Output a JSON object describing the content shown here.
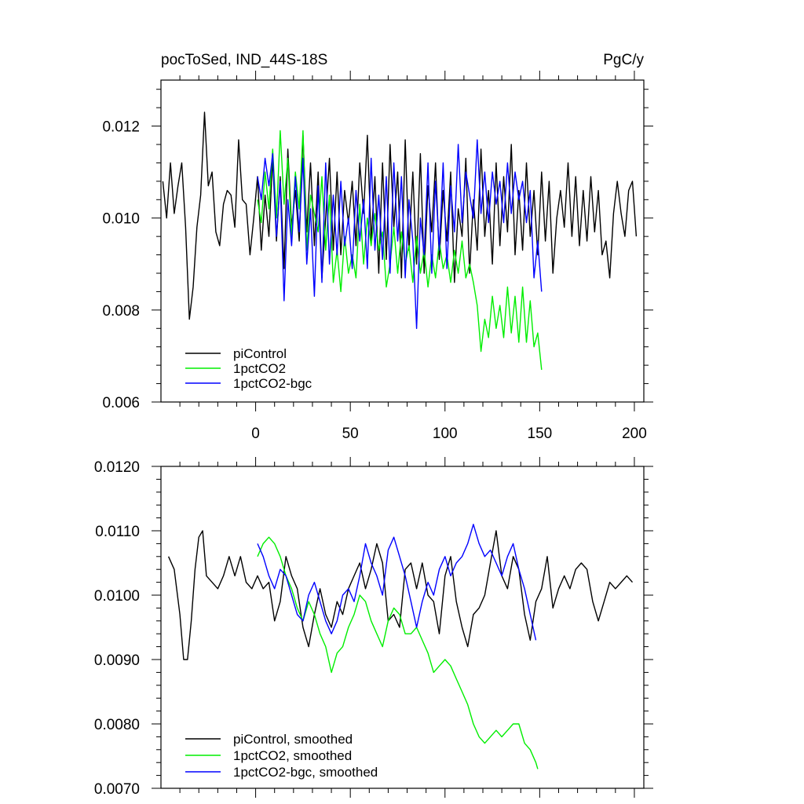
{
  "chart_data": [
    {
      "type": "line",
      "title_left": "pocToSed, IND_44S-18S",
      "title_right": "PgC/y",
      "xlim": [
        -50,
        205
      ],
      "ylim": [
        0.006,
        0.013
      ],
      "x_ticks": [
        0,
        50,
        100,
        150,
        200
      ],
      "x_tick_labels": [
        "0",
        "50",
        "100",
        "150",
        "200"
      ],
      "y_ticks": [
        0.006,
        0.008,
        0.01,
        0.012
      ],
      "y_tick_labels": [
        "0.006",
        "0.008",
        "0.010",
        "0.012"
      ],
      "legend": "bottom-left",
      "grid": false,
      "series": [
        {
          "name": "piControl",
          "color": "#000000",
          "x": [
            -49,
            -47,
            -45,
            -43,
            -41,
            -39,
            -37,
            -35,
            -33,
            -31,
            -29,
            -27,
            -25,
            -23,
            -21,
            -19,
            -17,
            -15,
            -13,
            -11,
            -9,
            -7,
            -5,
            -3,
            -1,
            1,
            3,
            5,
            7,
            9,
            11,
            13,
            15,
            17,
            19,
            21,
            23,
            25,
            27,
            29,
            31,
            33,
            35,
            37,
            39,
            41,
            43,
            45,
            47,
            49,
            51,
            53,
            55,
            57,
            59,
            61,
            63,
            65,
            67,
            69,
            71,
            73,
            75,
            77,
            79,
            81,
            83,
            85,
            87,
            89,
            91,
            93,
            95,
            97,
            99,
            101,
            103,
            105,
            107,
            109,
            111,
            113,
            115,
            117,
            119,
            121,
            123,
            125,
            127,
            129,
            131,
            133,
            135,
            137,
            139,
            141,
            143,
            145,
            147,
            149,
            151,
            153,
            155,
            157,
            159,
            161,
            163,
            165,
            167,
            169,
            171,
            173,
            175,
            177,
            179,
            181,
            183,
            185,
            187,
            189,
            191,
            193,
            195,
            197,
            199,
            201
          ],
          "y": [
            0.0108,
            0.01,
            0.0112,
            0.0101,
            0.0107,
            0.0112,
            0.0098,
            0.0078,
            0.0085,
            0.0098,
            0.0105,
            0.0123,
            0.0107,
            0.011,
            0.0097,
            0.0094,
            0.0103,
            0.0106,
            0.0105,
            0.0098,
            0.0117,
            0.0104,
            0.0103,
            0.0092,
            0.01,
            0.0109,
            0.0093,
            0.0105,
            0.0096,
            0.0113,
            0.0095,
            0.0109,
            0.0089,
            0.0115,
            0.0098,
            0.0106,
            0.0095,
            0.0118,
            0.0097,
            0.0112,
            0.0094,
            0.011,
            0.0087,
            0.01,
            0.0113,
            0.0093,
            0.011,
            0.0092,
            0.0106,
            0.0099,
            0.0108,
            0.0094,
            0.0112,
            0.0101,
            0.0118,
            0.0095,
            0.0109,
            0.0088,
            0.0112,
            0.0091,
            0.0116,
            0.0098,
            0.011,
            0.0087,
            0.0117,
            0.0093,
            0.011,
            0.009,
            0.0114,
            0.0088,
            0.0107,
            0.0097,
            0.0112,
            0.0091,
            0.0106,
            0.0095,
            0.011,
            0.0086,
            0.0102,
            0.0096,
            0.0113,
            0.0088,
            0.0104,
            0.0093,
            0.0115,
            0.0096,
            0.0106,
            0.009,
            0.0112,
            0.0094,
            0.0109,
            0.0097,
            0.0116,
            0.0092,
            0.0106,
            0.0093,
            0.0112,
            0.0096,
            0.0106,
            0.0092,
            0.011,
            0.0095,
            0.0108,
            0.0088,
            0.01,
            0.0106,
            0.0098,
            0.0112,
            0.0096,
            0.0109,
            0.0094,
            0.0106,
            0.0095,
            0.0109,
            0.0097,
            0.0106,
            0.0092,
            0.0095,
            0.0087,
            0.0101,
            0.0108,
            0.0101,
            0.0096,
            0.0106,
            0.0108,
            0.0096
          ]
        },
        {
          "name": "1pctCO2",
          "color": "#00ee00",
          "x": [
            1,
            3,
            5,
            7,
            9,
            11,
            13,
            15,
            17,
            19,
            21,
            23,
            25,
            27,
            29,
            31,
            33,
            35,
            37,
            39,
            41,
            43,
            45,
            47,
            49,
            51,
            53,
            55,
            57,
            59,
            61,
            63,
            65,
            67,
            69,
            71,
            73,
            75,
            77,
            79,
            81,
            83,
            85,
            87,
            89,
            91,
            93,
            95,
            97,
            99,
            101,
            103,
            105,
            107,
            109,
            111,
            113,
            115,
            117,
            119,
            121,
            123,
            125,
            127,
            129,
            131,
            133,
            135,
            137,
            139,
            141,
            143,
            145,
            147,
            149,
            151
          ],
          "y": [
            0.0104,
            0.0099,
            0.011,
            0.0102,
            0.0115,
            0.01,
            0.0119,
            0.0103,
            0.0113,
            0.0096,
            0.011,
            0.0102,
            0.0119,
            0.0093,
            0.0105,
            0.0101,
            0.0097,
            0.0109,
            0.0093,
            0.0105,
            0.0086,
            0.0093,
            0.0084,
            0.0096,
            0.0088,
            0.0092,
            0.0087,
            0.0103,
            0.009,
            0.01,
            0.0094,
            0.0101,
            0.0093,
            0.0097,
            0.0085,
            0.009,
            0.0098,
            0.0088,
            0.0097,
            0.009,
            0.0094,
            0.0086,
            0.0096,
            0.0088,
            0.0093,
            0.0085,
            0.0092,
            0.0087,
            0.0095,
            0.0089,
            0.0092,
            0.0086,
            0.0093,
            0.0088,
            0.0095,
            0.0087,
            0.009,
            0.0086,
            0.0081,
            0.0071,
            0.0078,
            0.0074,
            0.0083,
            0.0076,
            0.0081,
            0.0074,
            0.0085,
            0.0075,
            0.0083,
            0.0073,
            0.0085,
            0.0073,
            0.0082,
            0.0072,
            0.0075,
            0.0067
          ]
        },
        {
          "name": "1pctCO2-bgc",
          "color": "#0000ff",
          "x": [
            1,
            3,
            5,
            7,
            9,
            11,
            13,
            15,
            17,
            19,
            21,
            23,
            25,
            27,
            29,
            31,
            33,
            35,
            37,
            39,
            41,
            43,
            45,
            47,
            49,
            51,
            53,
            55,
            57,
            59,
            61,
            63,
            65,
            67,
            69,
            71,
            73,
            75,
            77,
            79,
            81,
            83,
            85,
            87,
            89,
            91,
            93,
            95,
            97,
            99,
            101,
            103,
            105,
            107,
            109,
            111,
            113,
            115,
            117,
            119,
            121,
            123,
            125,
            127,
            129,
            131,
            133,
            135,
            137,
            139,
            141,
            143,
            145,
            147,
            149,
            151
          ],
          "y": [
            0.0109,
            0.0104,
            0.0113,
            0.0107,
            0.0114,
            0.0096,
            0.0108,
            0.0082,
            0.0104,
            0.0094,
            0.0109,
            0.0097,
            0.0113,
            0.009,
            0.0102,
            0.0083,
            0.0107,
            0.0086,
            0.0112,
            0.009,
            0.0105,
            0.0092,
            0.0108,
            0.0094,
            0.01,
            0.0089,
            0.0106,
            0.0095,
            0.0104,
            0.0089,
            0.0113,
            0.0093,
            0.0105,
            0.0091,
            0.0109,
            0.0088,
            0.0112,
            0.0095,
            0.0109,
            0.0087,
            0.0104,
            0.0095,
            0.0076,
            0.01,
            0.0092,
            0.0112,
            0.0088,
            0.0108,
            0.0093,
            0.0112,
            0.0089,
            0.0107,
            0.0097,
            0.0116,
            0.0099,
            0.011,
            0.0105,
            0.01,
            0.0117,
            0.0101,
            0.011,
            0.0099,
            0.011,
            0.0103,
            0.0108,
            0.0099,
            0.0112,
            0.0101,
            0.011,
            0.0104,
            0.0108,
            0.0099,
            0.0106,
            0.0087,
            0.0095,
            0.0084
          ]
        }
      ]
    },
    {
      "type": "line",
      "xlim": [
        -50,
        205
      ],
      "ylim": [
        0.007,
        0.012
      ],
      "x_ticks": [
        0,
        50,
        100,
        150,
        200
      ],
      "y_ticks": [
        0.007,
        0.008,
        0.009,
        0.01,
        0.011,
        0.012
      ],
      "y_tick_labels": [
        "0.0070",
        "0.0080",
        "0.0090",
        "0.0100",
        "0.0110",
        "0.0120"
      ],
      "legend": "bottom-left",
      "grid": false,
      "series": [
        {
          "name": "piControl, smoothed",
          "color": "#000000",
          "x": [
            -46,
            -43,
            -40,
            -38,
            -36,
            -34,
            -32,
            -30,
            -28,
            -26,
            -23,
            -20,
            -17,
            -14,
            -11,
            -8,
            -5,
            -2,
            1,
            4,
            7,
            10,
            13,
            16,
            19,
            22,
            25,
            28,
            31,
            34,
            37,
            40,
            43,
            46,
            49,
            52,
            55,
            58,
            61,
            64,
            67,
            70,
            73,
            76,
            79,
            82,
            85,
            88,
            91,
            94,
            97,
            100,
            103,
            106,
            109,
            112,
            115,
            118,
            121,
            124,
            127,
            130,
            133,
            136,
            139,
            142,
            145,
            148,
            151,
            154,
            157,
            160,
            163,
            166,
            169,
            172,
            175,
            178,
            181,
            184,
            187,
            190,
            193,
            196,
            199
          ],
          "y": [
            0.0106,
            0.0104,
            0.0097,
            0.009,
            0.009,
            0.0096,
            0.0104,
            0.0109,
            0.011,
            0.0103,
            0.0102,
            0.0101,
            0.0103,
            0.0106,
            0.0103,
            0.0106,
            0.0102,
            0.0101,
            0.0103,
            0.0101,
            0.0102,
            0.0096,
            0.0099,
            0.0106,
            0.0103,
            0.0101,
            0.0095,
            0.0092,
            0.0097,
            0.0101,
            0.0097,
            0.0095,
            0.0099,
            0.0097,
            0.0101,
            0.0103,
            0.0105,
            0.0101,
            0.0104,
            0.0108,
            0.0105,
            0.0096,
            0.0097,
            0.0095,
            0.0104,
            0.0105,
            0.0101,
            0.0105,
            0.01,
            0.0099,
            0.0094,
            0.0103,
            0.0106,
            0.0099,
            0.0095,
            0.0092,
            0.0097,
            0.0098,
            0.01,
            0.0105,
            0.011,
            0.0103,
            0.0101,
            0.0106,
            0.0104,
            0.0097,
            0.0093,
            0.0099,
            0.0101,
            0.0106,
            0.0098,
            0.0101,
            0.0103,
            0.0101,
            0.0104,
            0.0105,
            0.0104,
            0.0099,
            0.0096,
            0.0099,
            0.0102,
            0.0101,
            0.0102,
            0.0103,
            0.0102
          ]
        },
        {
          "name": "1pctCO2, smoothed",
          "color": "#00ee00",
          "x": [
            1,
            4,
            7,
            10,
            13,
            16,
            19,
            22,
            25,
            28,
            31,
            34,
            37,
            40,
            43,
            46,
            49,
            52,
            55,
            58,
            61,
            64,
            67,
            70,
            73,
            76,
            79,
            82,
            85,
            88,
            91,
            94,
            97,
            100,
            103,
            106,
            109,
            112,
            115,
            118,
            121,
            124,
            127,
            130,
            133,
            136,
            139,
            142,
            145,
            148,
            149
          ],
          "y": [
            0.0106,
            0.0108,
            0.0109,
            0.0108,
            0.0106,
            0.0103,
            0.0101,
            0.0098,
            0.0096,
            0.0099,
            0.0097,
            0.0094,
            0.0092,
            0.0088,
            0.0091,
            0.0092,
            0.0095,
            0.0097,
            0.01,
            0.0099,
            0.0096,
            0.0094,
            0.0092,
            0.0096,
            0.0098,
            0.0097,
            0.0094,
            0.0094,
            0.0095,
            0.0093,
            0.0091,
            0.0088,
            0.0089,
            0.009,
            0.0089,
            0.0087,
            0.0085,
            0.0083,
            0.008,
            0.0078,
            0.0077,
            0.0078,
            0.0079,
            0.0078,
            0.0079,
            0.008,
            0.008,
            0.0077,
            0.0076,
            0.0074,
            0.0073
          ]
        },
        {
          "name": "1pctCO2-bgc, smoothed",
          "color": "#0000ff",
          "x": [
            1,
            4,
            7,
            10,
            13,
            16,
            19,
            22,
            25,
            28,
            31,
            34,
            37,
            40,
            43,
            46,
            49,
            52,
            55,
            58,
            61,
            64,
            67,
            70,
            73,
            76,
            79,
            82,
            85,
            88,
            91,
            94,
            97,
            100,
            103,
            106,
            109,
            112,
            115,
            118,
            121,
            124,
            127,
            130,
            133,
            136,
            139,
            142,
            145,
            148
          ],
          "y": [
            0.0108,
            0.0106,
            0.0103,
            0.0101,
            0.0104,
            0.0103,
            0.01,
            0.0097,
            0.0096,
            0.01,
            0.0102,
            0.0099,
            0.0096,
            0.0094,
            0.0096,
            0.01,
            0.0101,
            0.0099,
            0.0103,
            0.0108,
            0.0105,
            0.0103,
            0.01,
            0.0107,
            0.0109,
            0.0106,
            0.0103,
            0.0099,
            0.0095,
            0.0099,
            0.0102,
            0.01,
            0.0104,
            0.0106,
            0.0103,
            0.0105,
            0.0106,
            0.0108,
            0.0111,
            0.0108,
            0.0106,
            0.0107,
            0.0105,
            0.0103,
            0.0106,
            0.0108,
            0.0104,
            0.0101,
            0.0097,
            0.0093
          ]
        }
      ]
    }
  ]
}
